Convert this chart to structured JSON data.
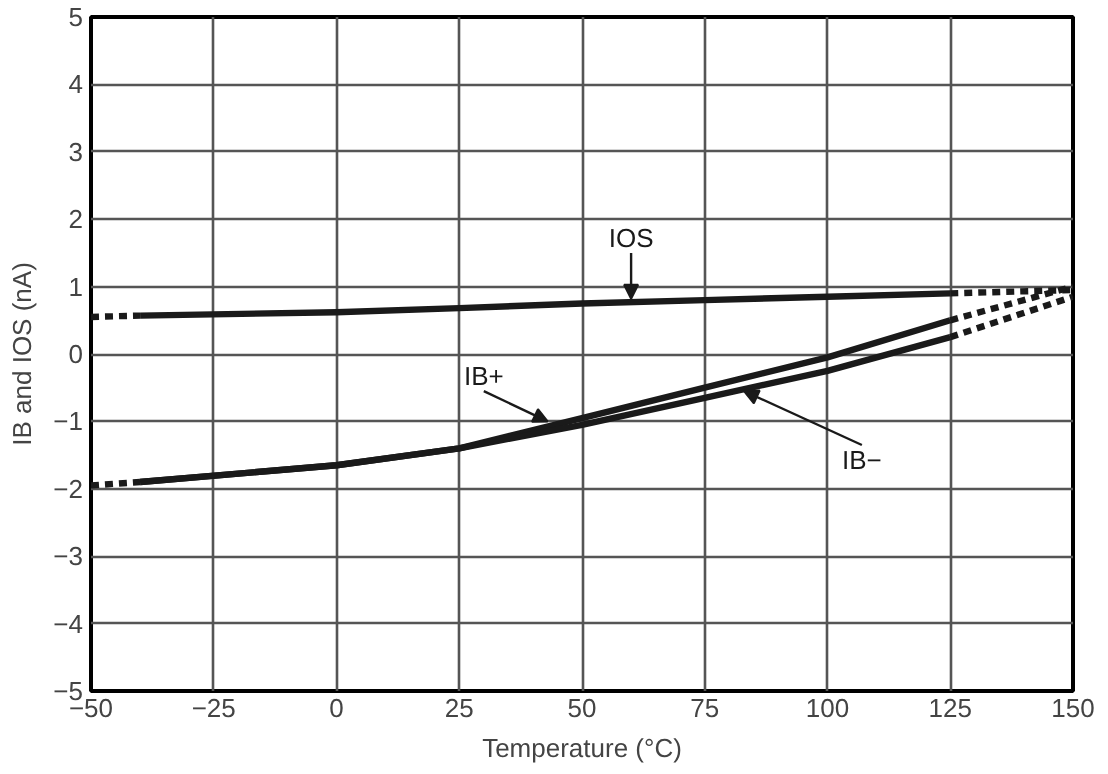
{
  "chart_data": {
    "type": "line",
    "xlabel": "Temperature (°C)",
    "ylabel": "IB and IOS (nA)",
    "xlim": [
      -50,
      150
    ],
    "xticks": [
      -50,
      -25,
      0,
      25,
      50,
      75,
      100,
      125,
      150
    ],
    "ylim": [
      -5,
      5
    ],
    "yticks": [
      5,
      4,
      3,
      2,
      1,
      0,
      -1,
      -2,
      -3,
      -4,
      -5
    ],
    "grid": true,
    "marker": "none",
    "series": [
      {
        "name": "IOS",
        "color": "#1a1a1a",
        "x": [
          -40,
          0,
          25,
          50,
          75,
          100,
          125
        ],
        "values": [
          0.57,
          0.62,
          0.68,
          0.75,
          0.8,
          0.85,
          0.9
        ],
        "line_style": "solid"
      },
      {
        "name": "IB+",
        "color": "#1a1a1a",
        "x": [
          -40,
          0,
          25,
          50,
          75,
          100,
          125
        ],
        "values": [
          -1.9,
          -1.65,
          -1.4,
          -0.95,
          -0.5,
          -0.05,
          0.5
        ],
        "line_style": "solid"
      },
      {
        "name": "IB−",
        "color": "#1a1a1a",
        "x": [
          -40,
          0,
          25,
          50,
          75,
          100,
          125
        ],
        "values": [
          -1.9,
          -1.65,
          -1.4,
          -1.05,
          -0.65,
          -0.25,
          0.25
        ],
        "line_style": "solid"
      },
      {
        "color": "#1a1a1a",
        "x": [
          -50,
          -40
        ],
        "values": [
          0.55,
          0.57
        ],
        "line_style": "dashed"
      },
      {
        "color": "#1a1a1a",
        "x": [
          -50,
          -40
        ],
        "values": [
          -1.95,
          -1.9
        ],
        "line_style": "dashed"
      },
      {
        "color": "#1a1a1a",
        "x": [
          125,
          150
        ],
        "values": [
          0.9,
          0.95
        ],
        "line_style": "dashed"
      },
      {
        "color": "#1a1a1a",
        "x": [
          125,
          150
        ],
        "values": [
          0.5,
          1.0
        ],
        "line_style": "dashed"
      },
      {
        "color": "#1a1a1a",
        "x": [
          125,
          150
        ],
        "values": [
          0.25,
          0.85
        ],
        "line_style": "dashed"
      }
    ]
  }
}
